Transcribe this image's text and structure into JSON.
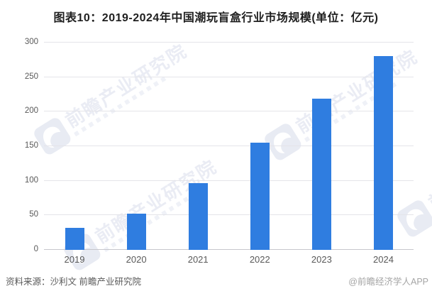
{
  "title": "图表10：2019-2024年中国潮玩盲盒行业市场规模(单位：亿元)",
  "chart_data": {
    "type": "bar",
    "title": "图表10：2019-2024年中国潮玩盲盒行业市场规模(单位：亿元)",
    "categories": [
      "2019",
      "2020",
      "2021",
      "2022",
      "2023",
      "2024"
    ],
    "values": [
      32,
      52,
      97,
      155,
      219,
      280
    ],
    "unit": "亿元",
    "xlabel": "",
    "ylabel": "",
    "ylim": [
      0,
      300
    ],
    "y_ticks": [
      0,
      50,
      100,
      150,
      200,
      250,
      300
    ],
    "grid": "horizontal",
    "legend": "none",
    "bar_color": "#2F7DE0"
  },
  "watermark": {
    "text": "前瞻产业研究院"
  },
  "footer": {
    "source": "资料来源：沙利文 前瞻产业研究院",
    "credit": "@前瞻经济学人APP"
  },
  "colors": {
    "bar": "#2F7DE0",
    "grid": "#e4e4e9",
    "axis_line": "#c6c6cc",
    "tick_label": "#595959",
    "title": "#1f1f1f",
    "credit": "#a5a5a5",
    "watermark": "#d9deec"
  }
}
